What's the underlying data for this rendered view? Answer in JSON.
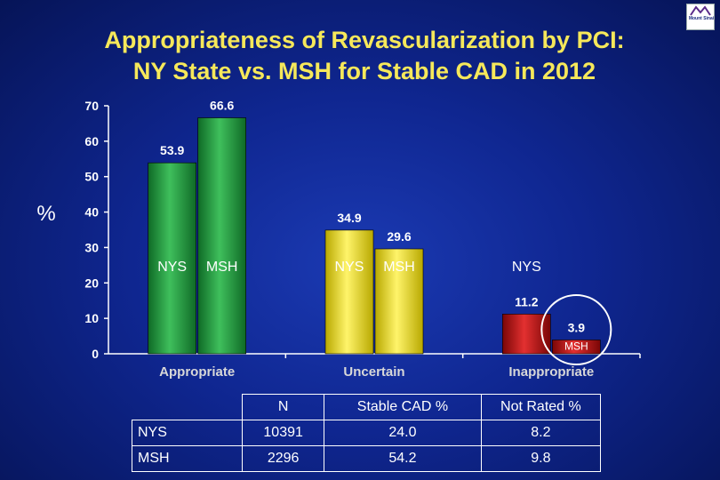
{
  "title_line1": "Appropriateness of Revascularization by PCI:",
  "title_line2": "NY State vs. MSH for Stable CAD in 2012",
  "logo_text": "Mount Sinai",
  "colors": {
    "title": "#f6e85a",
    "axis": "#ffffff",
    "nys_appropriate": "#1e8f3c",
    "msh_appropriate": "#1e8f3c",
    "uncertain": "#e8dc1a",
    "inappropriate": "#c01010",
    "circle": "#ffffff"
  },
  "chart_data": {
    "type": "bar",
    "ylabel": "%",
    "ylim": [
      0,
      70
    ],
    "yticks": [
      0,
      10,
      20,
      30,
      40,
      50,
      60,
      70
    ],
    "categories": [
      "Appropriate",
      "Uncertain",
      "Inappropriate"
    ],
    "series": [
      {
        "name": "NYS",
        "values": [
          53.9,
          34.9,
          11.2
        ]
      },
      {
        "name": "MSH",
        "values": [
          66.6,
          29.6,
          3.9
        ]
      }
    ],
    "value_labels": [
      [
        "53.9",
        "34.9",
        "11.2"
      ],
      [
        "66.6",
        "29.6",
        "3.9"
      ]
    ],
    "grid": false,
    "legend": "none",
    "highlight": "circle around Inappropriate MSH bar"
  },
  "table": {
    "headers": [
      "",
      "N",
      "Stable CAD %",
      "Not Rated %"
    ],
    "rows": [
      [
        "NYS",
        "10391",
        "24.0",
        "8.2"
      ],
      [
        "MSH",
        "2296",
        "54.2",
        "9.8"
      ]
    ]
  }
}
